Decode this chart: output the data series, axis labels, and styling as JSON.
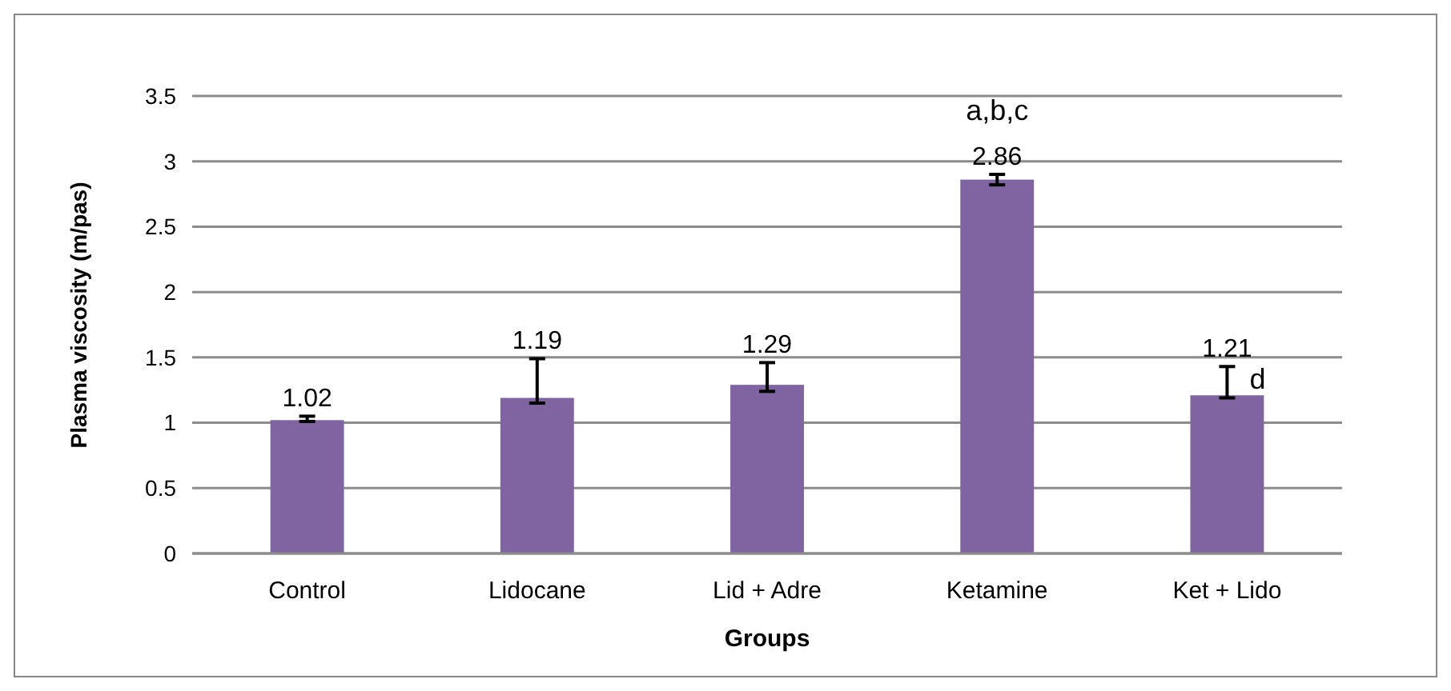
{
  "chart_data": {
    "type": "bar",
    "xlabel": "Groups",
    "ylabel": "Plasma viscosity (m/pas)",
    "categories": [
      "Control",
      "Lidocane",
      "Lid + Adre",
      "Ketamine",
      "Ket + Lido"
    ],
    "values": [
      1.02,
      1.19,
      1.29,
      2.86,
      1.21
    ],
    "color": "#8064a2",
    "errors": [
      [
        1.01,
        1.05
      ],
      [
        1.15,
        1.49
      ],
      [
        1.24,
        1.46
      ],
      [
        2.82,
        2.9
      ],
      [
        1.19,
        1.43
      ]
    ],
    "ylim": [
      0,
      3.5
    ],
    "yticks": [
      0,
      0.5,
      1,
      1.5,
      2,
      2.5,
      3,
      3.5
    ],
    "grid": "y",
    "data_labels": true,
    "annotations": [
      {
        "text": "a,b,c",
        "x": "Ketamine",
        "y": 2.9
      },
      {
        "text": "d",
        "x": "Ket + Lido",
        "y": 1.21
      }
    ]
  }
}
